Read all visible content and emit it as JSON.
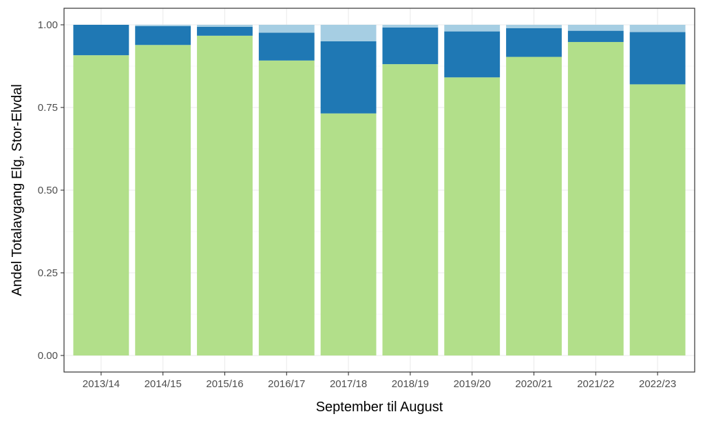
{
  "chart_data": {
    "type": "bar",
    "stacked": true,
    "title": "",
    "xlabel": "September til August",
    "ylabel": "Andel Totalavgang Elg, Stor-Elvdal",
    "ylim": [
      0,
      1.0
    ],
    "yticks": [
      0,
      0.25,
      0.5,
      0.75,
      1.0
    ],
    "ytick_labels": [
      "0.00",
      "0.25",
      "0.50",
      "0.75",
      "1.00"
    ],
    "grid": true,
    "legend": "none",
    "categories": [
      "2013/14",
      "2014/15",
      "2015/16",
      "2016/17",
      "2017/18",
      "2018/19",
      "2019/20",
      "2020/21",
      "2021/22",
      "2022/23"
    ],
    "series": [
      {
        "color": "#b2df8a",
        "values": [
          0.908,
          0.939,
          0.967,
          0.892,
          0.732,
          0.881,
          0.841,
          0.903,
          0.948,
          0.82
        ]
      },
      {
        "color": "#1f78b4",
        "values": [
          0.092,
          0.057,
          0.027,
          0.084,
          0.218,
          0.111,
          0.139,
          0.087,
          0.034,
          0.158
        ]
      },
      {
        "color": "#a6cee3",
        "values": [
          0.0,
          0.004,
          0.006,
          0.024,
          0.05,
          0.008,
          0.02,
          0.01,
          0.018,
          0.022
        ]
      }
    ]
  }
}
